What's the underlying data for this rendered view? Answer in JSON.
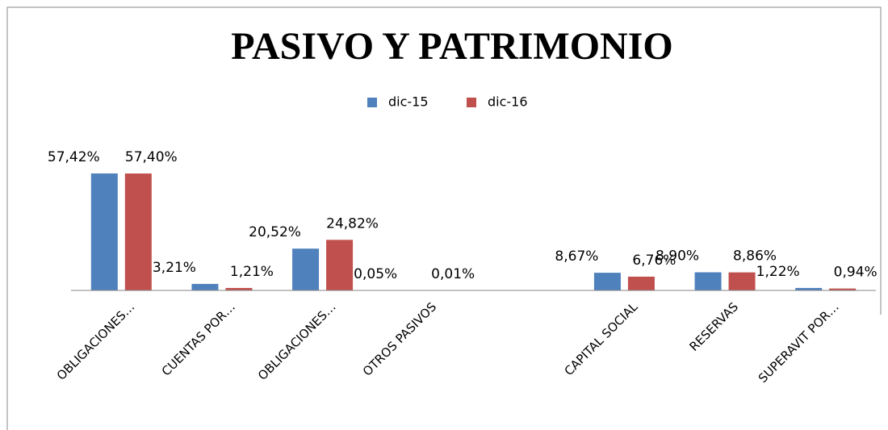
{
  "chart_data": {
    "type": "bar",
    "title": "PASIVO Y PATRIMONIO",
    "categories": [
      "OBLIGACIONES…",
      "CUENTAS POR…",
      "OBLIGACIONES…",
      "OTROS PASIVOS",
      null,
      "CAPITAL SOCIAL",
      "RESERVAS",
      "SUPERAVIT POR…"
    ],
    "series": [
      {
        "name": "dic-15",
        "color": "#4f81bd",
        "values": [
          57.42,
          3.21,
          20.52,
          0.05,
          null,
          8.67,
          8.9,
          1.22
        ],
        "value_labels": [
          "57,42%",
          "3,21%",
          "20,52%",
          "0,05%",
          null,
          "8,67%",
          "8,90%",
          "1,22%"
        ]
      },
      {
        "name": "dic-16",
        "color": "#c0504d",
        "values": [
          57.4,
          1.21,
          24.82,
          0.01,
          null,
          6.76,
          8.86,
          0.94
        ],
        "value_labels": [
          "57,40%",
          "1,21%",
          "24,82%",
          "0,01%",
          null,
          "6,76%",
          "8,86%",
          "0,94%"
        ]
      }
    ],
    "legend": "top"
  }
}
